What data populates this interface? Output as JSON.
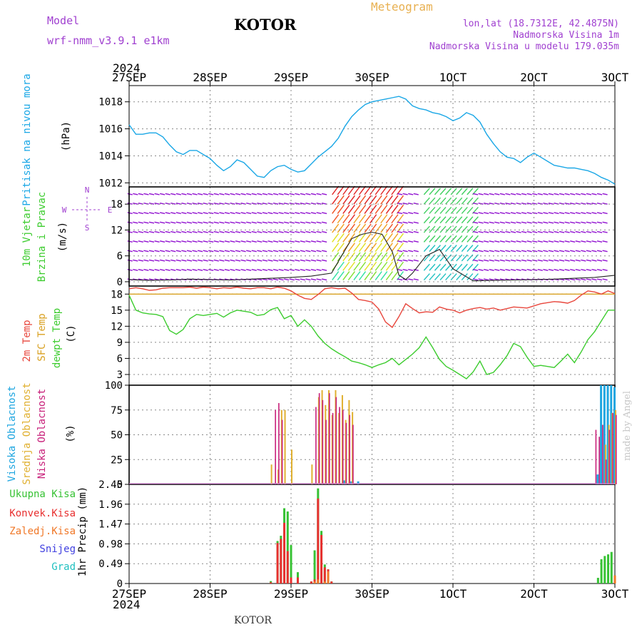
{
  "header": {
    "model_label": "Model",
    "model_name": "wrf-nmm_v3.9.1 e1km",
    "location": "KOTOR",
    "product": "Meteogram",
    "lonlat": "lon,lat (18.7312E, 42.4875N)",
    "altitude": "Nadmorska Visina 1m",
    "model_altitude": "Nadmorska Visina u modelu 179.035m",
    "year": "2024",
    "footer_location": "KOTOR",
    "watermark": "made by Angel"
  },
  "colors": {
    "pressure": "#1aa7e6",
    "temp2m": "#e8463c",
    "sfc_temp": "#d9a020",
    "dewpt": "#3ccc2e",
    "high_cloud": "#1fa6e0",
    "mid_cloud": "#e0b030",
    "low_cloud": "#c8207a",
    "total_rain": "#37c234",
    "conv_rain": "#e83030",
    "frozen_rain": "#f07828",
    "snow": "#4040e0",
    "hail": "#20c0c0",
    "header_purple": "#a040d0",
    "header_orange": "#e8b050",
    "wind_purple": "#9010d0"
  },
  "time_axis": {
    "labels": [
      "27SEP",
      "28SEP",
      "29SEP",
      "30SEP",
      "1OCT",
      "2OCT",
      "3OCT"
    ],
    "hours": [
      0,
      24,
      48,
      72,
      96,
      120,
      144
    ]
  },
  "chart_data": [
    {
      "type": "line",
      "panel": "pressure",
      "ylabel": "Pritisak na nivou mora",
      "unit": "(hPa)",
      "ylim": [
        1011.7,
        1019.2
      ],
      "yticks": [
        1012,
        1014,
        1016,
        1018
      ],
      "x_hours": [
        0,
        2,
        4,
        6,
        8,
        10,
        12,
        14,
        16,
        18,
        20,
        22,
        24,
        26,
        28,
        30,
        32,
        34,
        36,
        38,
        40,
        42,
        44,
        46,
        48,
        50,
        52,
        54,
        56,
        58,
        60,
        62,
        64,
        66,
        68,
        70,
        72,
        74,
        76,
        78,
        80,
        82,
        84,
        86,
        88,
        90,
        92,
        94,
        96,
        98,
        100,
        102,
        104,
        106,
        108,
        110,
        112,
        114,
        116,
        118,
        120,
        122,
        124,
        126,
        128,
        130,
        132,
        134,
        136,
        138,
        140,
        142,
        144
      ],
      "series": [
        {
          "values": [
            1016.3,
            1015.6,
            1015.6,
            1015.7,
            1015.7,
            1015.4,
            1014.8,
            1014.3,
            1014.1,
            1014.4,
            1014.4,
            1014.1,
            1013.8,
            1013.3,
            1012.9,
            1013.2,
            1013.7,
            1013.5,
            1013.0,
            1012.5,
            1012.4,
            1012.9,
            1013.2,
            1013.3,
            1013.0,
            1012.8,
            1012.9,
            1013.4,
            1013.9,
            1014.3,
            1014.7,
            1015.3,
            1016.2,
            1016.9,
            1017.4,
            1017.8,
            1018.0,
            1018.1,
            1018.2,
            1018.3,
            1018.4,
            1018.2,
            1017.7,
            1017.5,
            1017.4,
            1017.2,
            1017.1,
            1016.9,
            1016.6,
            1016.8,
            1017.2,
            1017.0,
            1016.5,
            1015.6,
            1014.9,
            1014.3,
            1013.9,
            1013.8,
            1013.5,
            1013.9,
            1014.2,
            1013.9,
            1013.6,
            1013.3,
            1013.2,
            1013.1,
            1013.1,
            1013.0,
            1012.9,
            1012.7,
            1012.4,
            1012.2,
            1011.9
          ]
        }
      ]
    },
    {
      "type": "line",
      "panel": "wind",
      "ylabel": "10m Vjetar",
      "ylabel2": "Brzina i Pravac",
      "unit": "(m/s)",
      "compass": "N",
      "compass_w": "W",
      "compass_e": "E",
      "compass_s": "S",
      "ylim": [
        -1,
        22
      ],
      "yticks": [
        0,
        6,
        12,
        18
      ],
      "x_hours": [
        0,
        6,
        12,
        18,
        24,
        30,
        36,
        42,
        48,
        54,
        60,
        63,
        66,
        69,
        72,
        75,
        78,
        80,
        82,
        84,
        88,
        92,
        96,
        102,
        108,
        114,
        120,
        126,
        132,
        138,
        144
      ],
      "series": [
        {
          "values": [
            0.5,
            0.3,
            0.4,
            0.6,
            0.5,
            0.4,
            0.6,
            0.8,
            1.0,
            1.3,
            2.0,
            6.0,
            10.0,
            11.0,
            11.5,
            11.0,
            7.0,
            1.5,
            0.5,
            2.0,
            6.0,
            7.5,
            3.0,
            0.2,
            0.3,
            0.4,
            0.5,
            0.6,
            0.8,
            1.0,
            1.5
          ]
        }
      ]
    },
    {
      "type": "line",
      "panel": "temperature",
      "ylabel": "2m Temp",
      "ylabel2": "SFC Temp",
      "ylabel3": "dewpt Temp",
      "unit": "(C)",
      "ylim": [
        1.0,
        19.5
      ],
      "yticks": [
        3,
        6,
        9,
        12,
        15,
        18
      ],
      "x_hours": [
        0,
        2,
        4,
        6,
        8,
        10,
        12,
        14,
        16,
        18,
        20,
        22,
        24,
        26,
        28,
        30,
        32,
        34,
        36,
        38,
        40,
        42,
        44,
        46,
        48,
        50,
        52,
        54,
        56,
        58,
        60,
        62,
        64,
        66,
        68,
        70,
        72,
        74,
        76,
        78,
        80,
        82,
        84,
        86,
        88,
        90,
        92,
        94,
        96,
        98,
        100,
        102,
        104,
        106,
        108,
        110,
        112,
        114,
        116,
        118,
        120,
        122,
        124,
        126,
        128,
        130,
        132,
        134,
        136,
        138,
        140,
        142,
        144
      ],
      "series": [
        {
          "name": "2m Temp",
          "values": [
            19.0,
            19.2,
            19.0,
            18.7,
            18.8,
            19.1,
            19.2,
            19.2,
            19.2,
            19.3,
            19.1,
            19.3,
            19.2,
            19.0,
            19.2,
            19.1,
            19.3,
            19.1,
            19.0,
            19.2,
            19.2,
            19.0,
            19.3,
            19.1,
            18.6,
            17.8,
            17.2,
            17.0,
            17.9,
            19.0,
            19.2,
            19.0,
            19.1,
            18.2,
            17.0,
            16.8,
            16.5,
            15.2,
            12.8,
            11.8,
            13.8,
            16.2,
            15.3,
            14.5,
            14.7,
            14.6,
            15.6,
            15.2,
            15.0,
            14.5,
            15.0,
            15.3,
            15.5,
            15.2,
            15.4,
            15.0,
            15.3,
            15.6,
            15.5,
            15.4,
            15.8,
            16.2,
            16.4,
            16.6,
            16.5,
            16.3,
            16.8,
            17.8,
            18.6,
            18.4,
            18.0,
            18.6,
            18.1
          ]
        },
        {
          "name": "SFC Temp",
          "values": [
            18.0,
            18.0,
            18.0,
            18.0,
            18.0,
            18.0,
            18.0,
            18.0,
            18.0,
            18.0,
            18.0,
            18.0,
            18.0,
            18.0,
            18.0,
            18.0,
            18.0,
            18.0,
            18.0,
            18.0,
            18.0,
            18.0,
            18.0,
            18.0,
            18.0,
            18.0,
            18.0,
            18.0,
            18.0,
            18.0,
            18.0,
            18.0,
            18.0,
            18.0,
            18.0,
            18.0,
            18.0,
            18.0,
            18.0,
            18.0,
            18.0,
            18.0,
            18.0,
            18.0,
            18.0,
            18.0,
            18.0,
            18.0,
            18.0,
            18.0,
            18.0,
            18.0,
            18.0,
            18.0,
            18.0,
            18.0,
            18.0,
            18.0,
            18.0,
            18.0,
            18.0,
            18.0,
            18.0,
            18.0,
            18.0,
            18.0,
            18.0,
            18.0,
            18.0,
            18.0,
            18.0,
            18.0,
            18.0
          ]
        },
        {
          "name": "dewpt Temp",
          "values": [
            17.8,
            15.0,
            14.5,
            14.3,
            14.2,
            13.8,
            11.2,
            10.5,
            11.4,
            13.4,
            14.2,
            14.0,
            14.2,
            14.4,
            13.7,
            14.5,
            15.0,
            14.8,
            14.6,
            14.0,
            14.2,
            15.1,
            15.5,
            13.4,
            14.0,
            12.0,
            13.2,
            12.0,
            10.2,
            8.8,
            7.8,
            7.0,
            6.3,
            5.5,
            5.2,
            4.8,
            4.3,
            4.8,
            5.2,
            6.0,
            4.8,
            5.8,
            6.8,
            8.0,
            10.0,
            8.0,
            5.8,
            4.5,
            3.8,
            3.0,
            2.2,
            3.5,
            5.5,
            3.0,
            3.4,
            4.8,
            6.5,
            8.8,
            8.2,
            6.2,
            4.5,
            4.7,
            4.5,
            4.3,
            5.5,
            6.8,
            5.2,
            7.2,
            9.5,
            11.0,
            13.0,
            15.0,
            15.0
          ]
        }
      ]
    },
    {
      "type": "bar",
      "panel": "cloud",
      "ylabel": "Visoka Oblacnost",
      "ylabel2": "Srednja Oblacnost",
      "ylabel3": "Niska Oblacnost",
      "unit": "(%)",
      "ylim": [
        0,
        100
      ],
      "yticks": [
        0,
        25,
        50,
        75,
        100
      ],
      "series": [
        {
          "name": "Visoka Oblacnost",
          "x_hours": [
            64,
            66,
            68,
            139,
            140,
            141,
            142,
            143,
            144
          ],
          "values": [
            4,
            3,
            3,
            10,
            100,
            100,
            100,
            100,
            98
          ]
        },
        {
          "name": "Srednja Oblacnost",
          "x_hours": [
            42,
            44,
            45,
            46,
            48,
            54,
            56,
            57,
            58,
            59,
            60,
            61,
            62,
            63,
            64,
            65,
            66,
            141,
            142,
            143,
            144
          ],
          "values": [
            20,
            15,
            75,
            75,
            35,
            20,
            88,
            95,
            80,
            95,
            70,
            95,
            72,
            90,
            65,
            85,
            73,
            40,
            60,
            72,
            75
          ]
        },
        {
          "name": "Niska Oblacnost",
          "x_hours": [
            43,
            44,
            45,
            55,
            56,
            57,
            58,
            59,
            60,
            61,
            62,
            63,
            64,
            65,
            66,
            138,
            139,
            140,
            141,
            142,
            143,
            144
          ],
          "values": [
            75,
            82,
            65,
            78,
            92,
            85,
            65,
            92,
            72,
            88,
            78,
            75,
            62,
            70,
            60,
            55,
            48,
            60,
            25,
            55,
            72,
            70
          ]
        }
      ]
    },
    {
      "type": "bar",
      "panel": "precip",
      "ylabel": "1hr Precip",
      "unit": "(mm)",
      "ylim": [
        0,
        2.45
      ],
      "yticks": [
        0,
        0.49,
        0.98,
        1.47,
        1.96,
        2.45
      ],
      "legend": [
        "Ukupna Kisa",
        "Konvek.Kisa",
        "Zaledj.Kisa",
        "Snijeg",
        "Grad"
      ],
      "series": [
        {
          "name": "Ukupna Kisa",
          "x_hours": [
            42,
            44,
            45,
            46,
            47,
            48,
            50,
            54,
            55,
            56,
            57,
            58,
            59,
            60,
            139,
            140,
            141,
            142,
            143,
            144
          ],
          "values": [
            0.06,
            1.05,
            1.18,
            1.86,
            1.78,
            0.95,
            0.28,
            0.05,
            0.82,
            2.35,
            1.3,
            0.47,
            0.35,
            0.05,
            0.14,
            0.6,
            0.68,
            0.72,
            0.78,
            0.2
          ]
        },
        {
          "name": "Konvek.Kisa",
          "x_hours": [
            42,
            44,
            45,
            46,
            47,
            48,
            50,
            54,
            55,
            56,
            57,
            58,
            59,
            60
          ],
          "values": [
            0.03,
            1.0,
            1.1,
            1.5,
            0.8,
            0.15,
            0.15,
            0.05,
            0.1,
            2.1,
            1.2,
            0.4,
            0.35,
            0.05
          ]
        },
        {
          "name": "Zaledj.Kisa",
          "x_hours": [
            55,
            56,
            58,
            59,
            144
          ],
          "values": [
            0.05,
            0.1,
            0.05,
            0.3,
            0.2
          ]
        },
        {
          "name": "Snijeg",
          "x_hours": [],
          "values": []
        },
        {
          "name": "Grad",
          "x_hours": [],
          "values": []
        }
      ]
    }
  ]
}
